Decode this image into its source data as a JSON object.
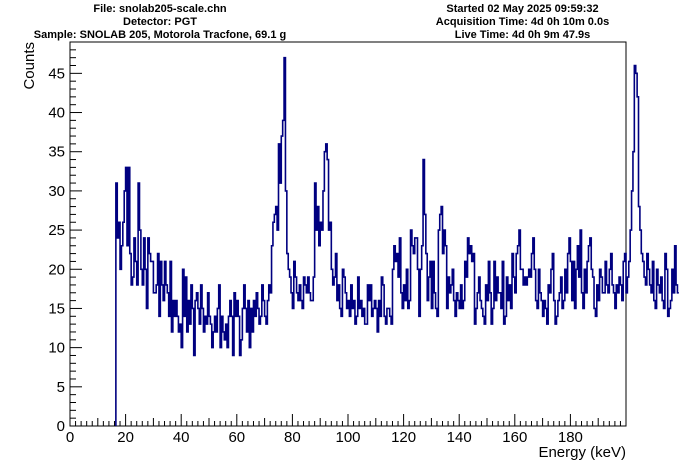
{
  "header": {
    "file": "File: snolab205-scale.chn",
    "detector": "Detector: PGT",
    "sample": "Sample: SNOLAB 205, Motorola Tracfone, 69.1 g",
    "started": "Started 02 May 2025 09:59:32",
    "acquisition": "Acquisition Time: 4d 0h 10m 0.0s",
    "live": "Live Time: 4d 0h 9m 47.9s"
  },
  "chart_data": {
    "type": "line",
    "style": "histogram-step",
    "title": "",
    "xlabel": "Energy (keV)",
    "ylabel": "Counts",
    "xlim": [
      0,
      200
    ],
    "ylim": [
      0,
      49
    ],
    "xticks": [
      0,
      20,
      40,
      60,
      80,
      100,
      120,
      140,
      160,
      180
    ],
    "yticks": [
      0,
      5,
      10,
      15,
      20,
      25,
      30,
      35,
      40,
      45
    ],
    "grid": false,
    "line_color": "#000080",
    "bin_width_kev": 0.5,
    "x_start_kev": 16.5,
    "series": [
      {
        "values": [
          31,
          24,
          26,
          20,
          23,
          26,
          30,
          33,
          23,
          33,
          22,
          18,
          19,
          24,
          21,
          18,
          31,
          25,
          20,
          18,
          24,
          20,
          15,
          24,
          22,
          21,
          21,
          17,
          17,
          18,
          22,
          14,
          21,
          18,
          16,
          21,
          18,
          17,
          14,
          21,
          12,
          16,
          14,
          16,
          14,
          12,
          13,
          10,
          20,
          14,
          19,
          12,
          16,
          13,
          18,
          15,
          9,
          16,
          17,
          15,
          13,
          18,
          15,
          12,
          14,
          13,
          17,
          14,
          13,
          10,
          12,
          14,
          12,
          15,
          18,
          10,
          14,
          12,
          11,
          13,
          10,
          14,
          16,
          14,
          9,
          17,
          14,
          16,
          14,
          9,
          11,
          15,
          18,
          15,
          12,
          16,
          10,
          15,
          12,
          16,
          14,
          17,
          15,
          13,
          14,
          18,
          16,
          14,
          13,
          16,
          18,
          17,
          23,
          26,
          27,
          28,
          25,
          36,
          31,
          37,
          39,
          47,
          30,
          22,
          20,
          19,
          17,
          15,
          21,
          19,
          17,
          16,
          18,
          16,
          15,
          19,
          18,
          17,
          19,
          17,
          16,
          16,
          19,
          31,
          25,
          28,
          23,
          26,
          25,
          30,
          35,
          36,
          34,
          25,
          26,
          20,
          18,
          19,
          22,
          16,
          18,
          15,
          14,
          20,
          19,
          17,
          15,
          16,
          14,
          18,
          15,
          16,
          13,
          14,
          19,
          15,
          16,
          14,
          15,
          13,
          13,
          18,
          16,
          18,
          14,
          15,
          16,
          15,
          12,
          16,
          14,
          19,
          18,
          14,
          13,
          15,
          15,
          14,
          13,
          20,
          23,
          21,
          22,
          19,
          24,
          17,
          15,
          18,
          16,
          20,
          15,
          16,
          25,
          23,
          22,
          24,
          24,
          20,
          14,
          20,
          23,
          34,
          27,
          22,
          16,
          19,
          21,
          15,
          21,
          17,
          15,
          14,
          25,
          27,
          28,
          22,
          25,
          23,
          15,
          19,
          17,
          18,
          20,
          16,
          14,
          17,
          16,
          15,
          18,
          15,
          16,
          21,
          19,
          24,
          22,
          23,
          21,
          22,
          13,
          15,
          17,
          19,
          16,
          15,
          14,
          13,
          18,
          16,
          21,
          17,
          13,
          15,
          21,
          16,
          19,
          17,
          17,
          15,
          21,
          13,
          14,
          19,
          16,
          18,
          15,
          22,
          19,
          17,
          22,
          23,
          25,
          20,
          20,
          18,
          19,
          18,
          19,
          20,
          19,
          22,
          24,
          20,
          16,
          15,
          20,
          17,
          16,
          14,
          16,
          15,
          13,
          18,
          17,
          20,
          22,
          16,
          13,
          14,
          16,
          17,
          19,
          15,
          16,
          20,
          17,
          22,
          24,
          21,
          16,
          21,
          15,
          20,
          23,
          19,
          25,
          17,
          15,
          20,
          17,
          21,
          23,
          24,
          20,
          19,
          15,
          14,
          18,
          16,
          20,
          19,
          17,
          17,
          21,
          18,
          17,
          20,
          22,
          18,
          17,
          15,
          18,
          17,
          19,
          18,
          16,
          21,
          22,
          17,
          19,
          21,
          25,
          30,
          35,
          46,
          45,
          42,
          28,
          25,
          22,
          21,
          19,
          18,
          22,
          20,
          18,
          17,
          21,
          16,
          15,
          20,
          18,
          17,
          19,
          16,
          15,
          22,
          20,
          14,
          15,
          16,
          20,
          17,
          23,
          18,
          17
        ]
      }
    ]
  }
}
